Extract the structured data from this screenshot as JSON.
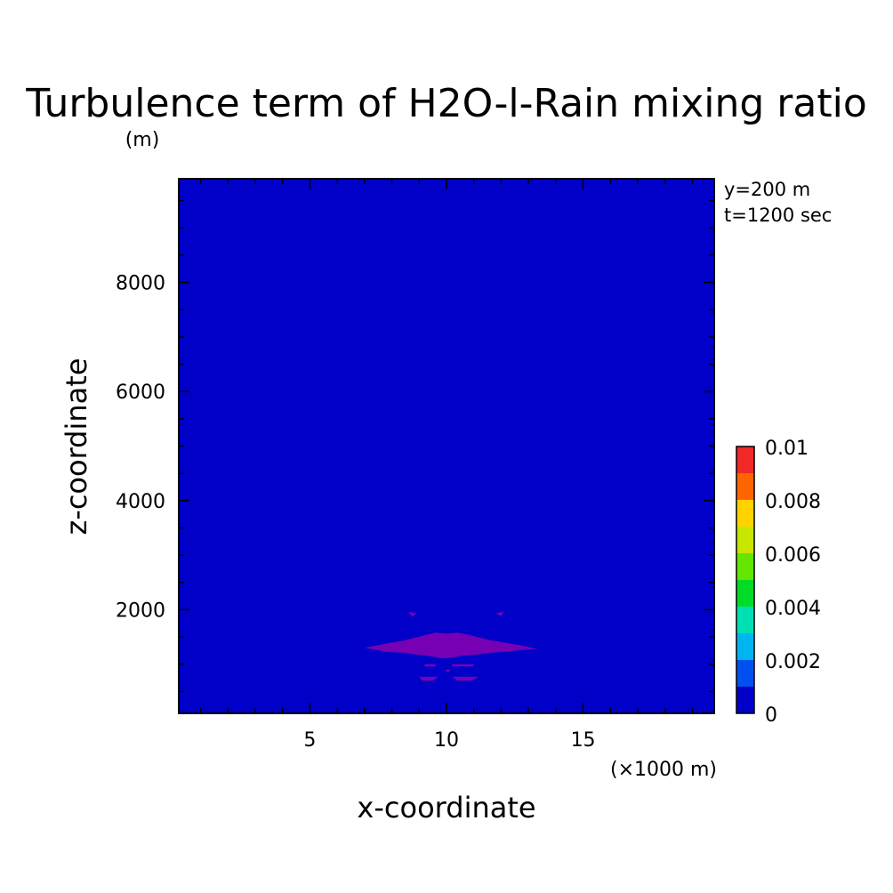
{
  "chart_data": {
    "type": "heatmap",
    "title": "Turbulence term of H2O-l-Rain mixing ratio",
    "y_unit": "(m)",
    "xlabel": "x-coordinate",
    "ylabel": "z-coordinate",
    "x_unit": "(×1000 m)",
    "annotations": [
      "y=200 m",
      "t=1200 sec"
    ],
    "xlim": [
      0.2,
      19.8
    ],
    "ylim": [
      100,
      9900
    ],
    "x_ticks": [
      5,
      10,
      15
    ],
    "y_ticks": [
      2000,
      4000,
      6000,
      8000
    ],
    "x_minor_step": 1,
    "y_minor_step": 500,
    "background_level": 0,
    "colorbar": {
      "levels": [
        0,
        0.001,
        0.002,
        0.003,
        0.004,
        0.005,
        0.006,
        0.007,
        0.008,
        0.009,
        0.01
      ],
      "labels": [
        "0",
        "0.002",
        "0.004",
        "0.006",
        "0.008",
        "0.01"
      ],
      "colors": [
        "#0000c8",
        "#0050f0",
        "#00b4f0",
        "#00e0b4",
        "#00dc28",
        "#64e600",
        "#c8e600",
        "#ffd200",
        "#ff6400",
        "#f02828"
      ]
    },
    "features": [
      {
        "name": "negative-region",
        "color": "#7800b4",
        "points_km_m": [
          [
            7.0,
            1300
          ],
          [
            7.8,
            1380
          ],
          [
            8.4,
            1430
          ],
          [
            8.8,
            1480
          ],
          [
            9.2,
            1530
          ],
          [
            9.6,
            1580
          ],
          [
            10.0,
            1560
          ],
          [
            10.4,
            1580
          ],
          [
            10.8,
            1540
          ],
          [
            11.2,
            1490
          ],
          [
            11.6,
            1440
          ],
          [
            12.2,
            1390
          ],
          [
            12.8,
            1340
          ],
          [
            13.3,
            1280
          ],
          [
            12.5,
            1250
          ],
          [
            11.6,
            1210
          ],
          [
            11.0,
            1170
          ],
          [
            10.6,
            1160
          ],
          [
            10.2,
            1120
          ],
          [
            9.8,
            1110
          ],
          [
            9.4,
            1150
          ],
          [
            9.0,
            1170
          ],
          [
            8.4,
            1210
          ],
          [
            7.7,
            1240
          ]
        ]
      },
      {
        "name": "negative-blob-upper-left",
        "color": "#7800b4",
        "points_km_m": [
          [
            8.6,
            1960
          ],
          [
            8.9,
            1940
          ],
          [
            8.75,
            1870
          ]
        ]
      },
      {
        "name": "negative-blob-upper-right",
        "color": "#7800b4",
        "points_km_m": [
          [
            11.8,
            1930
          ],
          [
            12.1,
            1970
          ],
          [
            12.0,
            1880
          ]
        ]
      },
      {
        "name": "negative-blob-lower-left",
        "color": "#7800b4",
        "points_km_m": [
          [
            9.2,
            1000
          ],
          [
            9.6,
            1000
          ],
          [
            9.6,
            960
          ],
          [
            9.2,
            960
          ]
        ]
      },
      {
        "name": "negative-blob-lower-right",
        "color": "#7800b4",
        "points_km_m": [
          [
            10.2,
            1000
          ],
          [
            11.0,
            1000
          ],
          [
            11.0,
            960
          ],
          [
            10.2,
            960
          ]
        ]
      },
      {
        "name": "negative-blob-bottom-left",
        "color": "#7800b4",
        "points_km_m": [
          [
            9.0,
            770
          ],
          [
            9.7,
            770
          ],
          [
            9.5,
            700
          ],
          [
            9.1,
            700
          ]
        ]
      },
      {
        "name": "negative-blob-bottom-right",
        "color": "#7800b4",
        "points_km_m": [
          [
            10.2,
            770
          ],
          [
            11.2,
            770
          ],
          [
            10.9,
            700
          ],
          [
            10.4,
            700
          ]
        ]
      },
      {
        "name": "negative-blob-center-dot",
        "color": "#7800b4",
        "points_km_m": [
          [
            9.95,
            900
          ],
          [
            10.15,
            900
          ],
          [
            10.05,
            840
          ]
        ]
      }
    ]
  }
}
